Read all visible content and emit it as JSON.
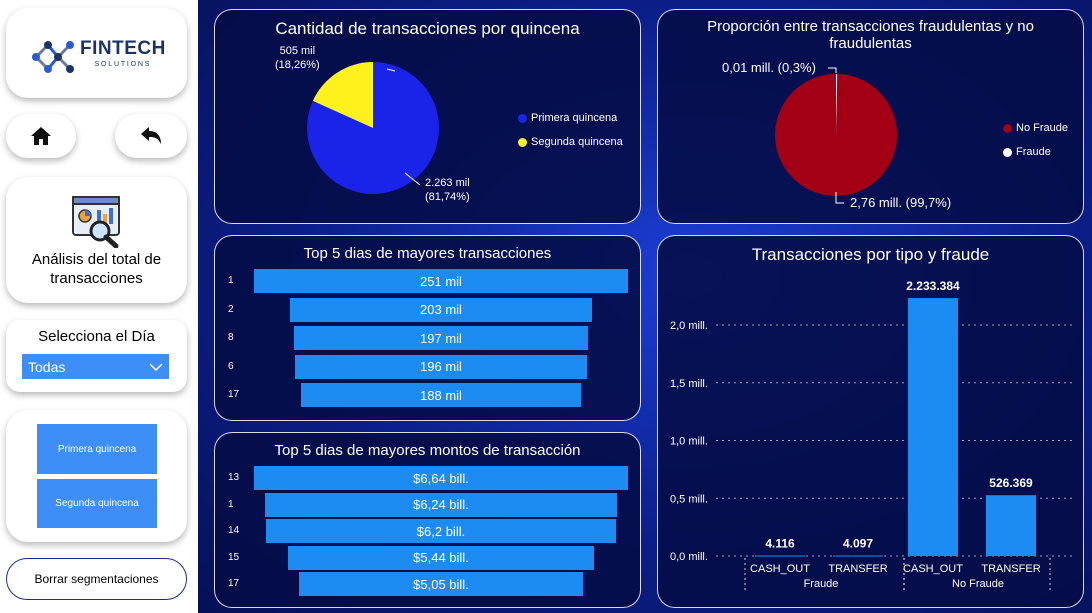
{
  "sidebar": {
    "logo": {
      "name": "FINTECH",
      "subtitle": "SOLUTIONS",
      "icon": "network-nodes-icon"
    },
    "home_icon": "home-icon",
    "back_icon": "back-arrow-icon",
    "page_nav": {
      "icon": "analytics-magnifier-icon",
      "label": "Análisis del total de transacciones"
    },
    "day_filter": {
      "title": "Selecciona el Día",
      "selected": "Todas"
    },
    "quincena_buttons": [
      "Primera quincena",
      "Segunda quincena"
    ],
    "clear_button": "Borrar segmentaciones"
  },
  "colors": {
    "pie_blue": "#1a23e8",
    "pie_yellow": "#fff21c",
    "fraud_red": "#a30016",
    "bar_blue": "#1c8cf3",
    "white": "#ffffff"
  },
  "panels": {
    "quincena_pie": {
      "chart_data": {
        "type": "pie",
        "title": "Cantidad de transacciones por quincena",
        "slices": [
          {
            "name": "Primera quincena",
            "value_label": "2.263 mil",
            "pct_label": "(81,74%)",
            "pct": 81.74
          },
          {
            "name": "Segunda quincena",
            "value_label": "505 mil",
            "pct_label": "(18,26%)",
            "pct": 18.26
          }
        ],
        "legend": "right"
      }
    },
    "fraud_pie": {
      "chart_data": {
        "type": "pie",
        "title": "Proporción entre transacciones fraudulentas y no fraudulentas",
        "slices": [
          {
            "name": "No Fraude",
            "label": "2,76 mill. (99,7%)",
            "pct": 99.7
          },
          {
            "name": "Fraude",
            "label": "0,01 mill. (0,3%)",
            "pct": 0.3
          }
        ],
        "legend": "right"
      }
    },
    "top_days_tx": {
      "chart_data": {
        "type": "bar",
        "title": "Top 5 dias de mayores transacciones",
        "categories": [
          "1",
          "2",
          "8",
          "6",
          "17"
        ],
        "values": [
          251,
          203,
          197,
          196,
          188
        ],
        "value_labels": [
          "251 mil",
          "203 mil",
          "197 mil",
          "196 mil",
          "188 mil"
        ]
      }
    },
    "top_days_amount": {
      "chart_data": {
        "type": "bar",
        "title": "Top 5 dias de mayores montos de transacción",
        "categories": [
          "13",
          "1",
          "14",
          "15",
          "17"
        ],
        "values": [
          6.64,
          6.24,
          6.2,
          5.44,
          5.05
        ],
        "value_labels": [
          "$6,64 bill.",
          "$6,24 bill.",
          "$6,2 bill.",
          "$5,44 bill.",
          "$5,05 bill."
        ]
      }
    },
    "tx_by_type": {
      "chart_data": {
        "type": "bar",
        "title": "Transacciones por tipo y fraude",
        "categories": [
          "CASH_OUT",
          "TRANSFER",
          "CASH_OUT",
          "TRANSFER"
        ],
        "groups": [
          "Fraude",
          "No Fraude"
        ],
        "values": [
          4116,
          4097,
          2233384,
          526369
        ],
        "value_labels": [
          "4.116",
          "4.097",
          "2.233.384",
          "526.369"
        ],
        "y_ticks": [
          "0,0 mill.",
          "0,5 mill.",
          "1,0 mill.",
          "1,5 mill.",
          "2,0 mill."
        ],
        "y_tick_values": [
          0,
          500000,
          1000000,
          1500000,
          2000000
        ],
        "ylim": [
          0,
          2300000
        ],
        "grid": true
      }
    }
  }
}
